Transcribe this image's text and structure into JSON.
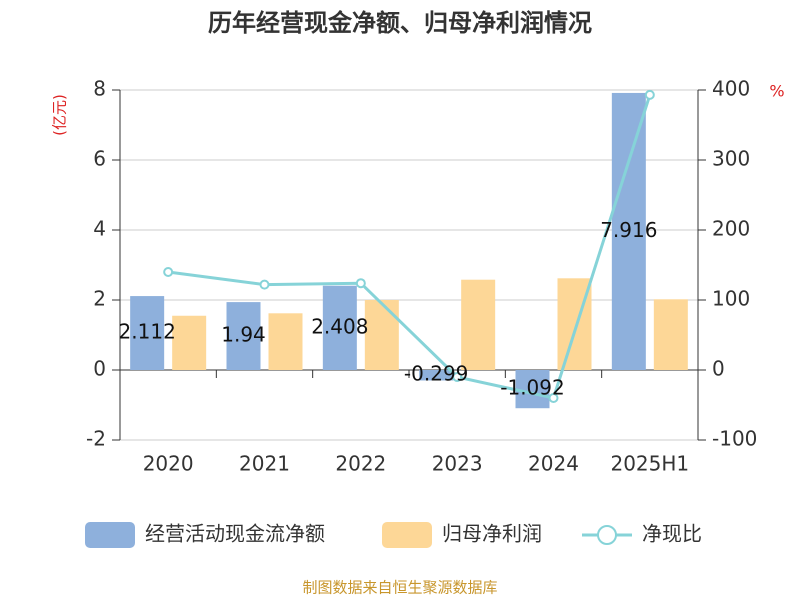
{
  "chart_data": {
    "type": "bar",
    "title": "历年经营现金净额、归母净利润情况",
    "categories": [
      "2020",
      "2021",
      "2022",
      "2023",
      "2024",
      "2025H1"
    ],
    "series": [
      {
        "name": "经营活动现金流净额",
        "color": "#8eb0dc",
        "values": [
          2.112,
          1.94,
          2.408,
          -0.299,
          -1.092,
          7.916
        ]
      },
      {
        "name": "归母净利润",
        "color": "#fdd797",
        "values": [
          1.55,
          1.62,
          2.0,
          2.58,
          2.62,
          2.02
        ]
      },
      {
        "name": "净现比",
        "color": "#86d3d8",
        "type": "line",
        "axis": "y2",
        "values": [
          140,
          122,
          124,
          -10,
          -40,
          393
        ]
      }
    ],
    "y_label": "(亿元)",
    "y2_label": "%",
    "ylim": [
      -2,
      8
    ],
    "yticks": [
      -2,
      0,
      2,
      4,
      6,
      8
    ],
    "y2lim": [
      -100,
      400
    ],
    "y2ticks": [
      -100,
      0,
      100,
      200,
      300,
      400
    ],
    "grid": true,
    "legend": "bottom",
    "source": "制图数据来自恒生聚源数据库"
  }
}
